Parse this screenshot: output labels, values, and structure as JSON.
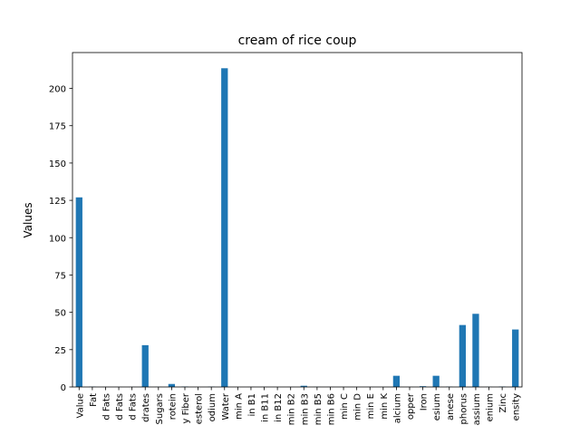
{
  "chart_data": {
    "type": "bar",
    "title": "cream of rice coup",
    "xlabel": "",
    "ylabel": "Values",
    "ylim": [
      0,
      224
    ],
    "yticks": [
      0,
      25,
      50,
      75,
      100,
      125,
      150,
      175,
      200
    ],
    "grid": false,
    "legend": "none",
    "bar_color": "#1f77b4",
    "categories": [
      "Value",
      "Fat",
      "d Fats",
      "d Fats",
      "d Fats",
      "drates",
      "Sugars",
      "rotein",
      "y Fiber",
      "esterol",
      "odium",
      "Water",
      "min A",
      "in B1",
      "in B11",
      "in B12",
      "min B2",
      "min B3",
      "min B5",
      "min B6",
      "min C",
      "min D",
      "min E",
      "min K",
      "alcium",
      "opper",
      "Iron",
      "esium",
      "anese",
      "phorus",
      "assium",
      "enium",
      "Zinc",
      "ensity"
    ],
    "values": [
      127,
      0.2,
      0.05,
      0.05,
      0.05,
      28,
      0.1,
      2,
      0.3,
      0,
      0.2,
      213.5,
      0,
      0.05,
      0.05,
      0,
      0.05,
      0.8,
      0.1,
      0.05,
      0,
      0,
      0.05,
      0,
      7.5,
      0.05,
      0.5,
      7.5,
      0.2,
      41.5,
      49,
      0.1,
      0.3,
      38.5
    ]
  }
}
